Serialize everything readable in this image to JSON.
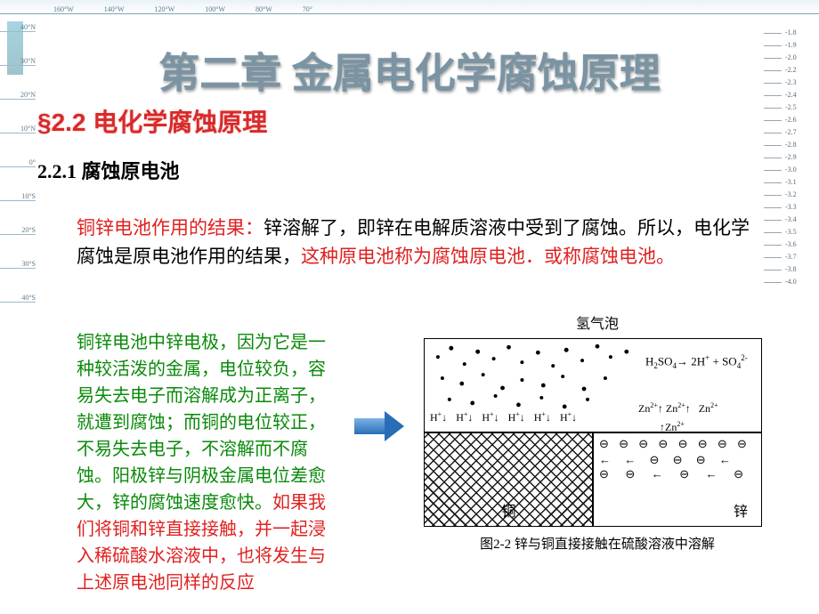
{
  "ruler_top": [
    "160°W",
    "140°W",
    "120°W",
    "100°W",
    "80°W",
    "70°"
  ],
  "ruler_left": [
    "40°N",
    "30°N",
    "20°N",
    "10°N",
    "0°",
    "10°S",
    "20°S",
    "30°S",
    "40°S"
  ],
  "ruler_right": [
    "-1.8",
    "-1.9",
    "-2.0",
    "-2.2",
    "-2.3",
    "-2.4",
    "-2.5",
    "-2.6",
    "-2.7",
    "-2.8",
    "-2.9",
    "-3.0",
    "-3.1",
    "-3.2",
    "-3.3",
    "-3.4",
    "-3.5",
    "-3.6",
    "-3.7",
    "-3.8",
    "-4.0"
  ],
  "chapter_title": "第二章 金属电化学腐蚀原理",
  "section_title": "§2.2 电化学腐蚀原理",
  "subsection_title": "2.2.1 腐蚀原电池",
  "para1": {
    "lead_red": "铜锌电池作用的结果：",
    "mid_black": "锌溶解了，即锌在电解质溶液中受到了腐蚀。所以，电化学腐蚀是原电池作用的结果，",
    "tail_red": "这种原电池称为腐蚀原电池．或称腐蚀电池。"
  },
  "para2": {
    "green1": "铜锌电池中锌电极，因为它是一种较活泼的金属，电位较负，容易失去电子而溶解成为正离子，就遭到腐蚀；而铜的电位较正，不易失去电子，不溶解而不腐蚀。阳极锌与阴极金属电位差愈大，锌的腐蚀速度愈快。",
    "red1": "如果我们将铜和锌直接接触，并一起浸入稀硫酸水溶液中，也将发生与上述原电池同样的反应"
  },
  "figure": {
    "top_label": "氢气泡",
    "equation": "H₂SO₄→ 2H⁺ + SO₄²⁻",
    "h_symbol": "H⁺",
    "zn_symbol": "Zn²⁺",
    "cu_label": "铜",
    "zn_label": "锌",
    "electron_symbol": "⊖",
    "caption": "图2-2 锌与铜直接接触在硫酸溶液中溶解"
  },
  "colors": {
    "title_red": "#d82a2a",
    "text_red": "#e02020",
    "text_green": "#0a8a0a",
    "arrow_blue": "#2a6db7",
    "ruler_gray": "#5a7a8a"
  }
}
